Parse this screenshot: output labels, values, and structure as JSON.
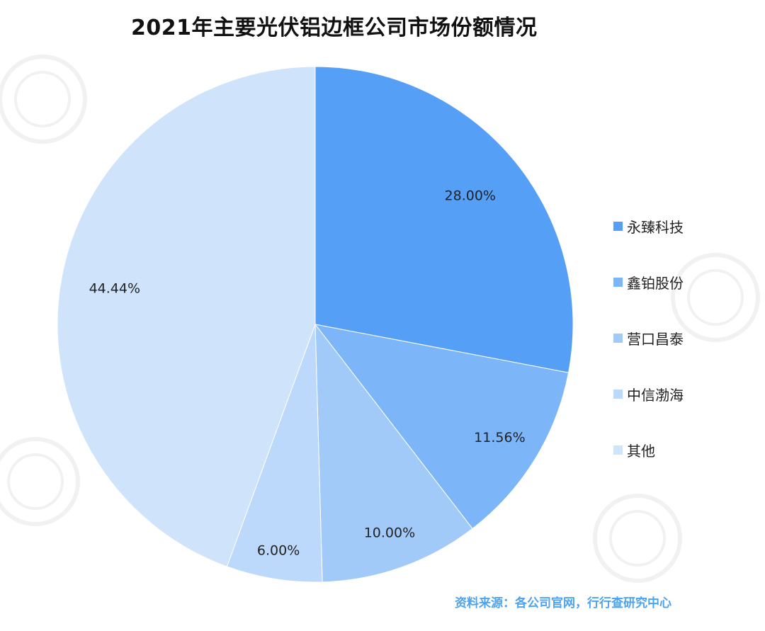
{
  "chart_data": {
    "type": "pie",
    "title": "2021年主要光伏铝边框公司市场份额情况",
    "series": [
      {
        "name": "永臻科技",
        "value": 28.0,
        "label": "28.00%",
        "color": "#559ff7"
      },
      {
        "name": "鑫铂股份",
        "value": 11.56,
        "label": "11.56%",
        "color": "#7cb6f8"
      },
      {
        "name": "营口昌泰",
        "value": 10.0,
        "label": "10.00%",
        "color": "#a2caf9"
      },
      {
        "name": "中信渤海",
        "value": 6.0,
        "label": "6.00%",
        "color": "#bcd9fb"
      },
      {
        "name": "其他",
        "value": 44.44,
        "label": "44.44%",
        "color": "#cfe3fb"
      }
    ],
    "start_angle": "12 o'clock",
    "direction": "clockwise",
    "legend_position": "right",
    "source": "资料来源：各公司官网，行行查研究中心"
  }
}
